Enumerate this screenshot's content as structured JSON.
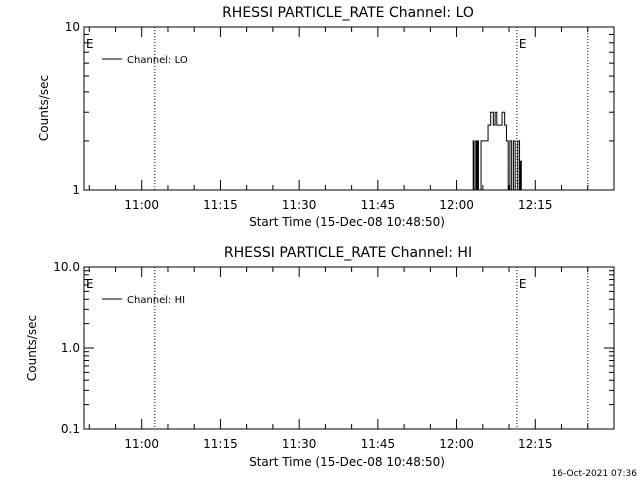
{
  "chart_data": [
    {
      "type": "line",
      "title": "RHESSI PARTICLE_RATE Channel: LO",
      "xlabel": "Start Time (15-Dec-08 10:48:50)",
      "ylabel": "Counts/sec",
      "y_scale": "log",
      "ylim": [
        1,
        10
      ],
      "ytick_labels": [
        "1",
        "10"
      ],
      "xlim": [
        "10:49:00",
        "12:30:00"
      ],
      "xtick_labels": [
        "11:00",
        "11:15",
        "11:30",
        "11:45",
        "12:00",
        "12:15"
      ],
      "xticks": [
        "11:00",
        "11:15",
        "11:30",
        "11:45",
        "12:00",
        "12:15"
      ],
      "legend": {
        "entries": [
          "Channel: LO"
        ],
        "placement": "top-left"
      },
      "event_lines": [
        "11:02:30",
        "12:11:30",
        "12:25:00"
      ],
      "event_markers": [
        {
          "label": "E",
          "at": "10:49:00"
        },
        {
          "label": "E",
          "at": "12:11:30"
        }
      ],
      "series": [
        {
          "name": "Channel: LO",
          "x": [
            "12:03:00",
            "12:03:10",
            "12:03:20",
            "12:03:40",
            "12:03:50",
            "12:04:00",
            "12:04:10",
            "12:04:40",
            "12:05:00",
            "12:05:30",
            "12:06:00",
            "12:06:10",
            "12:06:30",
            "12:07:00",
            "12:07:20",
            "12:07:40",
            "12:08:20",
            "12:08:40",
            "12:09:10",
            "12:09:30",
            "12:09:50",
            "12:10:10",
            "12:10:30",
            "12:10:50",
            "12:11:10",
            "12:11:30",
            "12:11:40",
            "12:12:00",
            "12:12:10",
            "12:12:20"
          ],
          "y": [
            1,
            2,
            1,
            2,
            1,
            2,
            1,
            2,
            2,
            2,
            2.5,
            2.5,
            3,
            2.5,
            3,
            2.5,
            2.5,
            3,
            2.5,
            2,
            1,
            2,
            1,
            2,
            1,
            1,
            2,
            1,
            1.5,
            1
          ]
        }
      ]
    },
    {
      "type": "line",
      "title": "RHESSI PARTICLE_RATE Channel: HI",
      "xlabel": "Start Time (15-Dec-08 10:48:50)",
      "ylabel": "Counts/sec",
      "y_scale": "log",
      "ylim": [
        0.1,
        10
      ],
      "ytick_labels": [
        "0.1",
        "1.0",
        "10.0"
      ],
      "xlim": [
        "10:49:00",
        "12:30:00"
      ],
      "xtick_labels": [
        "11:00",
        "11:15",
        "11:30",
        "11:45",
        "12:00",
        "12:15"
      ],
      "xticks": [
        "11:00",
        "11:15",
        "11:30",
        "11:45",
        "12:00",
        "12:15"
      ],
      "legend": {
        "entries": [
          "Channel: HI"
        ],
        "placement": "top-left"
      },
      "event_lines": [
        "11:02:30",
        "12:11:30",
        "12:25:00"
      ],
      "event_markers": [
        {
          "label": "E",
          "at": "10:49:00"
        },
        {
          "label": "E",
          "at": "12:11:30"
        }
      ],
      "series": [
        {
          "name": "Channel: HI",
          "x": [],
          "y": []
        }
      ]
    }
  ],
  "footer": {
    "timestamp": "16-Oct-2021 07:36"
  },
  "colors": {
    "foreground": "#000000",
    "background": "#ffffff"
  }
}
